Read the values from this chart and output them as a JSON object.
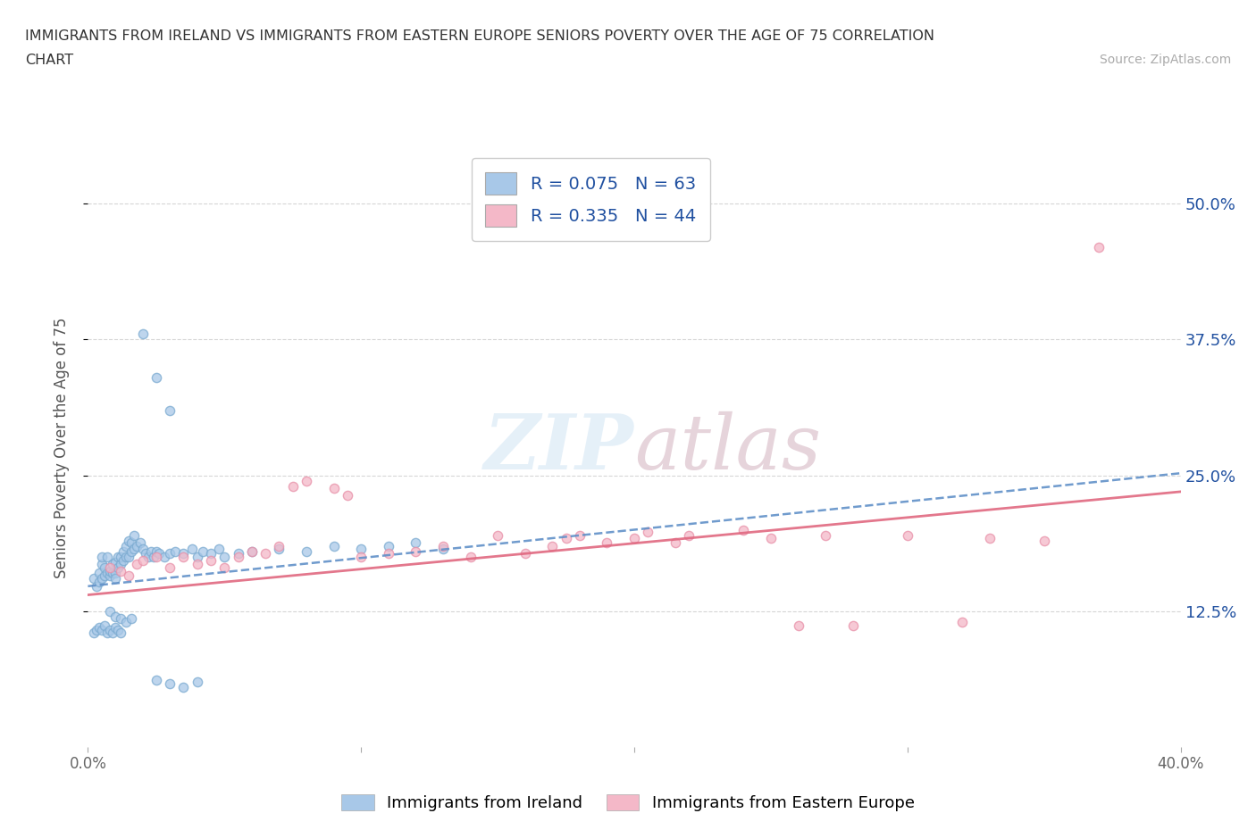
{
  "title_line1": "IMMIGRANTS FROM IRELAND VS IMMIGRANTS FROM EASTERN EUROPE SENIORS POVERTY OVER THE AGE OF 75 CORRELATION",
  "title_line2": "CHART",
  "source_text": "Source: ZipAtlas.com",
  "ylabel": "Seniors Poverty Over the Age of 75",
  "xmin": 0.0,
  "xmax": 0.4,
  "ymin": 0.0,
  "ymax": 0.55,
  "yticks": [
    0.125,
    0.25,
    0.375,
    0.5
  ],
  "ytick_labels": [
    "12.5%",
    "25.0%",
    "37.5%",
    "50.0%"
  ],
  "xticks": [
    0.0,
    0.1,
    0.2,
    0.3,
    0.4
  ],
  "xtick_labels": [
    "0.0%",
    "",
    "",
    "",
    "40.0%"
  ],
  "legend_r1": "R = 0.075",
  "legend_n1": "N = 63",
  "legend_r2": "R = 0.335",
  "legend_n2": "N = 44",
  "color_blue": "#a8c8e8",
  "color_blue_edge": "#7aaad0",
  "color_pink": "#f4b8c8",
  "color_pink_edge": "#e890a8",
  "color_blue_line": "#6090c8",
  "color_pink_line": "#e06880",
  "color_blue_text": "#2050a0",
  "watermark_color": "#d0e4f4",
  "ireland_x": [
    0.002,
    0.003,
    0.004,
    0.004,
    0.005,
    0.005,
    0.005,
    0.006,
    0.006,
    0.007,
    0.007,
    0.008,
    0.008,
    0.009,
    0.009,
    0.01,
    0.01,
    0.01,
    0.011,
    0.011,
    0.012,
    0.012,
    0.013,
    0.013,
    0.014,
    0.014,
    0.015,
    0.015,
    0.016,
    0.016,
    0.017,
    0.017,
    0.018,
    0.019,
    0.02,
    0.021,
    0.022,
    0.023,
    0.024,
    0.025,
    0.026,
    0.028,
    0.03,
    0.032,
    0.035,
    0.038,
    0.04,
    0.042,
    0.045,
    0.048,
    0.05,
    0.055,
    0.06,
    0.07,
    0.08,
    0.09,
    0.1,
    0.11,
    0.12,
    0.13,
    0.02,
    0.025,
    0.03
  ],
  "ireland_y": [
    0.155,
    0.148,
    0.152,
    0.16,
    0.155,
    0.168,
    0.175,
    0.158,
    0.165,
    0.16,
    0.175,
    0.158,
    0.162,
    0.16,
    0.168,
    0.16,
    0.155,
    0.17,
    0.165,
    0.175,
    0.168,
    0.175,
    0.172,
    0.18,
    0.175,
    0.185,
    0.175,
    0.19,
    0.18,
    0.188,
    0.182,
    0.195,
    0.185,
    0.188,
    0.182,
    0.178,
    0.175,
    0.18,
    0.175,
    0.18,
    0.178,
    0.175,
    0.178,
    0.18,
    0.178,
    0.182,
    0.175,
    0.18,
    0.178,
    0.182,
    0.175,
    0.178,
    0.18,
    0.182,
    0.18,
    0.185,
    0.182,
    0.185,
    0.188,
    0.182,
    0.38,
    0.34,
    0.31
  ],
  "ireland_y_outliers_x": [
    0.008,
    0.01,
    0.012,
    0.014,
    0.016,
    0.002,
    0.003,
    0.004,
    0.005,
    0.006,
    0.007,
    0.008,
    0.009,
    0.01,
    0.011,
    0.012,
    0.025,
    0.03,
    0.035,
    0.04
  ],
  "ireland_y_outliers_y": [
    0.125,
    0.12,
    0.118,
    0.115,
    0.118,
    0.105,
    0.108,
    0.11,
    0.108,
    0.112,
    0.105,
    0.108,
    0.105,
    0.11,
    0.108,
    0.105,
    0.062,
    0.058,
    0.055,
    0.06
  ],
  "eastern_x": [
    0.008,
    0.012,
    0.015,
    0.018,
    0.02,
    0.025,
    0.03,
    0.035,
    0.04,
    0.045,
    0.05,
    0.055,
    0.06,
    0.065,
    0.07,
    0.075,
    0.08,
    0.09,
    0.095,
    0.1,
    0.11,
    0.12,
    0.13,
    0.14,
    0.15,
    0.16,
    0.17,
    0.175,
    0.18,
    0.19,
    0.2,
    0.205,
    0.215,
    0.22,
    0.24,
    0.25,
    0.26,
    0.27,
    0.28,
    0.3,
    0.32,
    0.33,
    0.35,
    0.37
  ],
  "eastern_y": [
    0.165,
    0.162,
    0.158,
    0.168,
    0.172,
    0.175,
    0.165,
    0.175,
    0.168,
    0.172,
    0.165,
    0.175,
    0.18,
    0.178,
    0.185,
    0.24,
    0.245,
    0.238,
    0.232,
    0.175,
    0.178,
    0.18,
    0.185,
    0.175,
    0.195,
    0.178,
    0.185,
    0.192,
    0.195,
    0.188,
    0.192,
    0.198,
    0.188,
    0.195,
    0.2,
    0.192,
    0.112,
    0.195,
    0.112,
    0.195,
    0.115,
    0.192,
    0.19,
    0.46
  ],
  "ireland_trend_x": [
    0.0,
    0.4
  ],
  "ireland_trend_y": [
    0.148,
    0.252
  ],
  "eastern_trend_x": [
    0.0,
    0.4
  ],
  "eastern_trend_y": [
    0.14,
    0.235
  ]
}
